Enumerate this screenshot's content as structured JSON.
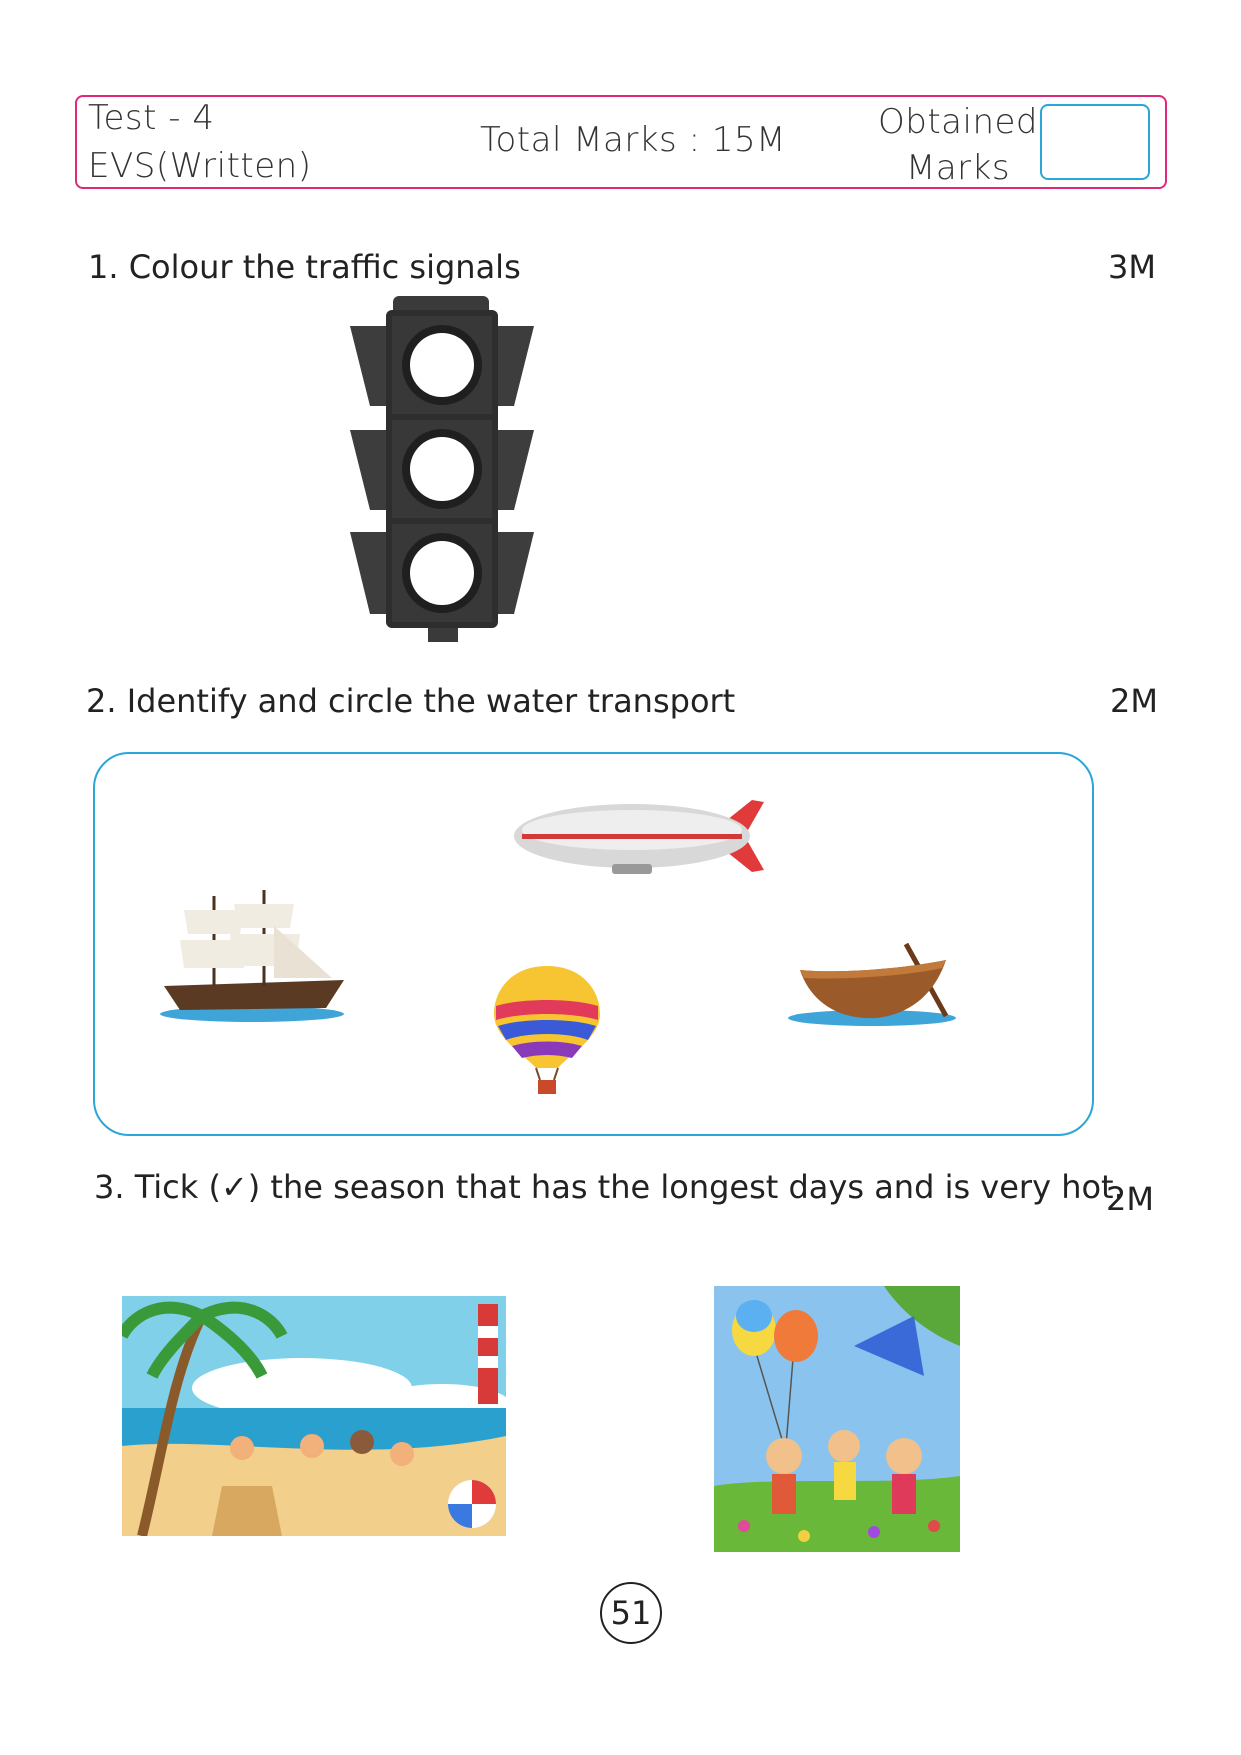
{
  "header": {
    "test_label": "Test  - 4",
    "subject": "EVS(Written)",
    "total_marks": "Total Marks : 15M",
    "obtained_line1": "Obtained",
    "obtained_line2": "Marks"
  },
  "questions": [
    {
      "number": "1.",
      "text": "Colour the traffic signals",
      "marks": "3M"
    },
    {
      "number": "2.",
      "text": "Identify and circle the water transport",
      "marks": "2M"
    },
    {
      "number": "3.",
      "text": "Tick (✓) the season that has the longest days and is very hot.",
      "marks": "2M"
    }
  ],
  "colors": {
    "header_border": "#e0287a",
    "accent_blue": "#2aa6d8"
  },
  "icons": [
    "traffic-light-icon",
    "sailing-ship-icon",
    "airship-icon",
    "hot-air-balloon-icon",
    "rowing-boat-icon",
    "summer-beach-scene",
    "spring-park-scene"
  ],
  "page_number": "51"
}
